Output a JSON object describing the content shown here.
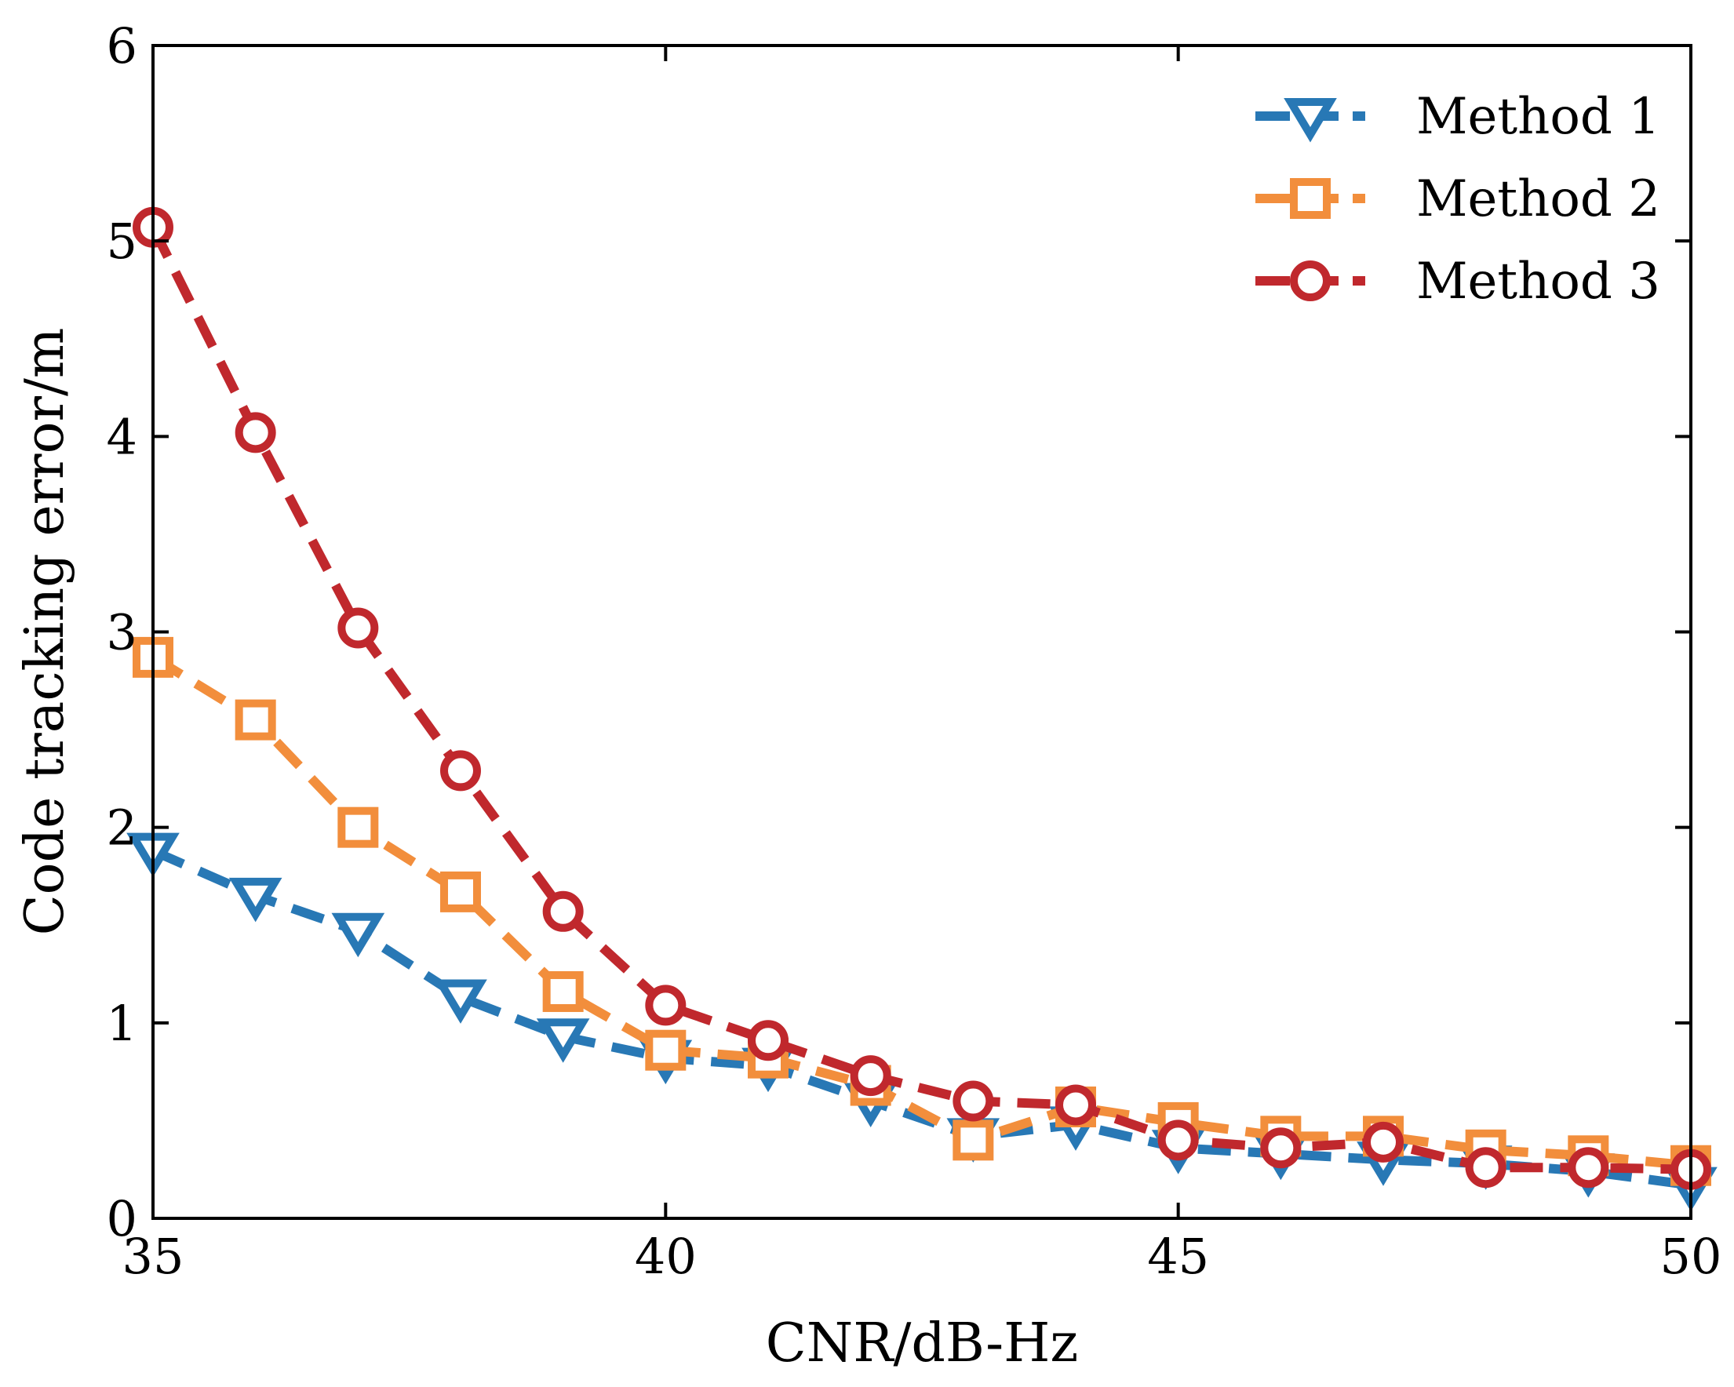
{
  "chart_data": {
    "type": "line",
    "title": "",
    "xlabel": "CNR/dB-Hz",
    "ylabel": "Code tracking error/m",
    "xlim": [
      35,
      50
    ],
    "ylim": [
      0,
      6
    ],
    "xticks": [
      35,
      40,
      45,
      50
    ],
    "yticks": [
      0,
      1,
      2,
      3,
      4,
      5,
      6
    ],
    "grid": false,
    "legend_position": "top-right",
    "x": [
      35,
      36,
      37,
      38,
      39,
      40,
      41,
      42,
      43,
      44,
      45,
      46,
      47,
      48,
      49,
      50
    ],
    "series": [
      {
        "name": "Method 1",
        "color": "#2878b5",
        "marker": "triangle-down",
        "values": [
          1.88,
          1.65,
          1.47,
          1.13,
          0.93,
          0.82,
          0.78,
          0.6,
          0.42,
          0.48,
          0.36,
          0.33,
          0.3,
          0.28,
          0.24,
          0.17
        ]
      },
      {
        "name": "Method 2",
        "color": "#f28e3c",
        "marker": "square",
        "values": [
          2.87,
          2.55,
          2.0,
          1.67,
          1.16,
          0.86,
          0.82,
          0.68,
          0.4,
          0.57,
          0.49,
          0.42,
          0.42,
          0.35,
          0.32,
          0.27
        ]
      },
      {
        "name": "Method 3",
        "color": "#c0282d",
        "marker": "circle",
        "values": [
          5.07,
          4.02,
          3.02,
          2.29,
          1.57,
          1.09,
          0.91,
          0.73,
          0.6,
          0.58,
          0.4,
          0.36,
          0.39,
          0.26,
          0.26,
          0.25
        ]
      }
    ]
  }
}
